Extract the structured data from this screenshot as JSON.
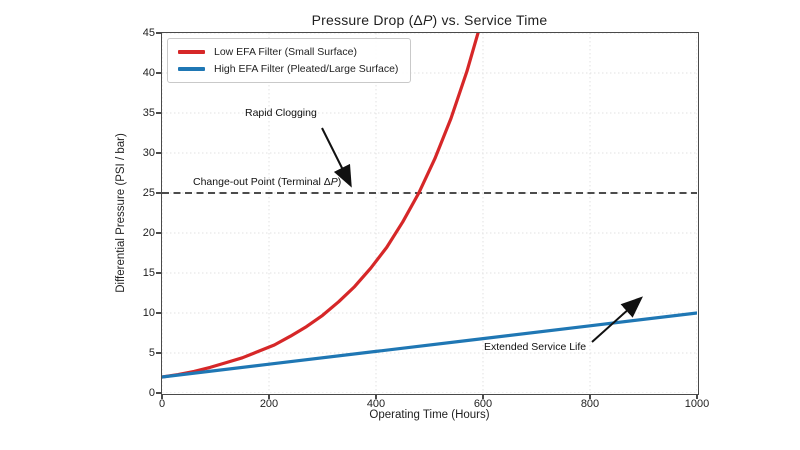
{
  "title": {
    "part1": "Pressure Drop (Δ",
    "part2": "P",
    "part3": ") vs. Service Time"
  },
  "annotations": {
    "rapid_clogging": "Rapid Clogging",
    "changeout_part1": "Change-out Point (Terminal Δ",
    "changeout_part2": "P",
    "changeout_part3": ")",
    "extended_service": "Extended Service Life"
  },
  "colors": {
    "low_efa_line": "#d62728",
    "high_efa_line": "#1f77b4",
    "reference_line": "#111111",
    "grid": "#e2e2e2",
    "spine": "#4a4a4a"
  },
  "chart_data": {
    "type": "line",
    "title": "Pressure Drop (ΔP) vs. Service Time",
    "xlabel": "Operating Time (Hours)",
    "ylabel": "Differential Pressure (PSI / bar)",
    "xlim": [
      0,
      1000
    ],
    "ylim": [
      0,
      45
    ],
    "x_ticks": [
      0,
      200,
      400,
      600,
      800,
      1000
    ],
    "y_ticks": [
      0,
      5,
      10,
      15,
      20,
      25,
      30,
      35,
      40,
      45
    ],
    "grid": true,
    "legend_position": "upper left",
    "series": [
      {
        "name": "Low EFA Filter (Small Surface)",
        "color": "#d62728",
        "style": "solid",
        "x": [
          0,
          30,
          60,
          90,
          120,
          150,
          180,
          210,
          240,
          270,
          300,
          330,
          360,
          390,
          420,
          450,
          480,
          510,
          540,
          570,
          592
        ],
        "y": [
          2.0,
          2.3,
          2.7,
          3.2,
          3.8,
          4.4,
          5.2,
          6.0,
          7.1,
          8.3,
          9.7,
          11.4,
          13.3,
          15.6,
          18.2,
          21.4,
          25.0,
          29.3,
          34.3,
          40.2,
          45.3
        ]
      },
      {
        "name": "High EFA Filter (Pleated/Large Surface)",
        "color": "#1f77b4",
        "style": "solid",
        "x": [
          0,
          200,
          400,
          600,
          800,
          1000
        ],
        "y": [
          2.0,
          3.6,
          5.2,
          6.8,
          8.4,
          10.0
        ]
      }
    ],
    "reference_line": {
      "y": 25,
      "label": "Change-out Point (Terminal ΔP)",
      "color": "#111111",
      "style": "dashed"
    },
    "annotations": [
      {
        "text": "Rapid Clogging",
        "arrow_from_xy": [
          299,
          33.2
        ],
        "arrow_to_xy": [
          354,
          25.9
        ]
      },
      {
        "text": "Extended Service Life",
        "arrow_from_xy": [
          806,
          6.4
        ],
        "arrow_to_xy": [
          896,
          11.8
        ]
      }
    ]
  }
}
